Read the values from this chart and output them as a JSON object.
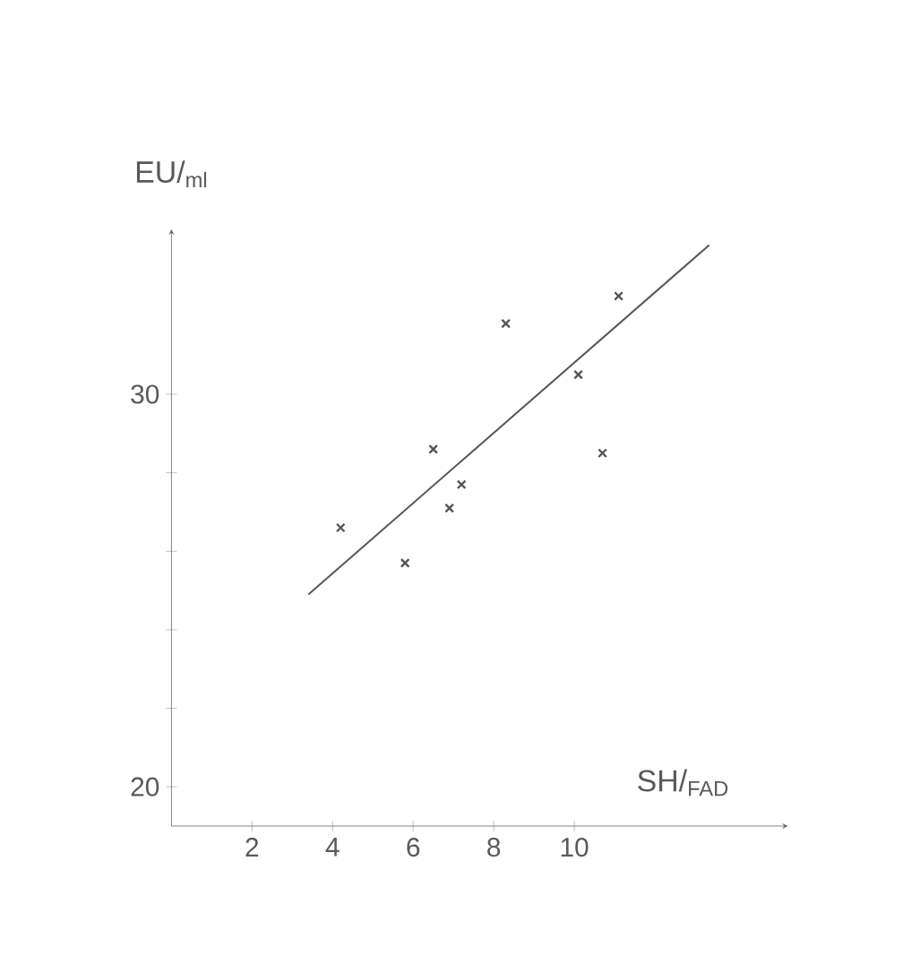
{
  "chart_data": {
    "type": "scatter",
    "xlabel": "SH/$_{FAD}$",
    "ylabel": "EU/$_{ml}$",
    "xlim": [
      0,
      15.3
    ],
    "ylim": [
      19,
      34.2
    ],
    "xticks": [
      2,
      4,
      6,
      8,
      10
    ],
    "yticks": [
      20,
      {
        "value": 22,
        "label": null
      },
      {
        "value": 24,
        "label": null
      },
      {
        "value": 26,
        "label": null
      },
      {
        "value": 28,
        "label": null
      },
      30
    ],
    "grid": false,
    "series": [
      {
        "color": "#555555",
        "marker": "cross",
        "x": [
          4.2,
          5.8,
          6.5,
          6.9,
          7.2,
          8.3,
          10.1,
          10.7,
          11.1
        ],
        "values": [
          26.6,
          25.7,
          28.6,
          27.1,
          27.7,
          31.8,
          30.5,
          28.5,
          32.5
        ]
      },
      {
        "type": "line",
        "color": "#555555",
        "marker": "none",
        "line_style": "solid",
        "x": [
          3.4,
          13.35
        ],
        "values": [
          24.9,
          33.8
        ]
      }
    ]
  }
}
